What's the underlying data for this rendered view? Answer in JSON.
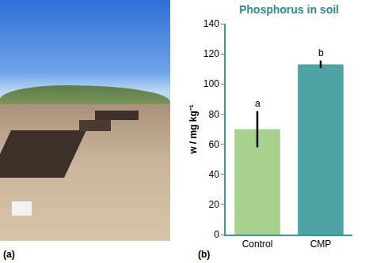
{
  "photo_label": "(a)",
  "chart_data": {
    "type": "bar",
    "title": "Phosphorus in soil",
    "panel_label": "(b)",
    "y_label": "w / mg kg⁻¹",
    "categories": [
      "Control",
      "CMP"
    ],
    "values": [
      70,
      113
    ],
    "errors": [
      12,
      2.5
    ],
    "significance_letters": [
      "a",
      "b"
    ],
    "colors": [
      "#a9d18e",
      "#4fa3a5"
    ],
    "ylim": [
      0,
      140
    ],
    "yticks": [
      0,
      20,
      40,
      60,
      80,
      100,
      120,
      140
    ],
    "grid": false
  }
}
